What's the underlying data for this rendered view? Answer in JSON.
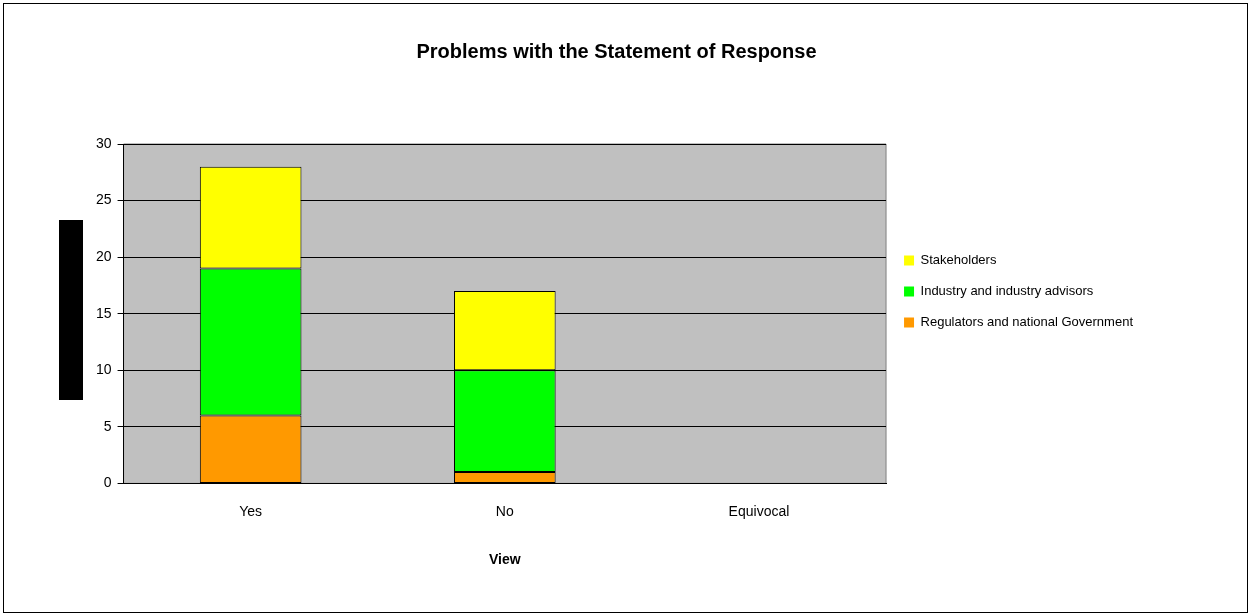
{
  "chart_data": {
    "type": "bar",
    "title": "Problems with the Statement of Response",
    "xlabel": "View",
    "categories": [
      "Yes",
      "No",
      "Equivocal"
    ],
    "series": [
      {
        "name": "Regulators and national Government",
        "color": "#ff9900",
        "values": [
          6,
          1,
          0
        ]
      },
      {
        "name": "Industry and industry advisors",
        "color": "#00ff00",
        "values": [
          13,
          9,
          0
        ]
      },
      {
        "name": "Stakeholders",
        "color": "#ffff00",
        "values": [
          9,
          7,
          0
        ]
      }
    ],
    "stacked": true,
    "ylim": [
      0,
      30
    ],
    "yticks": [
      0,
      5,
      10,
      15,
      20,
      25,
      30
    ],
    "grid": "y",
    "legend": "right"
  }
}
